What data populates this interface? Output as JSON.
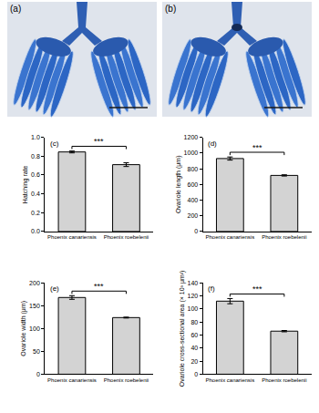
{
  "images": [
    {
      "label": "(a)"
    },
    {
      "label": "(b)"
    }
  ],
  "chart_data": [
    {
      "type": "bar",
      "label": "(c)",
      "categories": [
        "Phoenix canariensis",
        "Phoenix roebelenii"
      ],
      "values": [
        0.845,
        0.71
      ],
      "errors": [
        0.01,
        0.02
      ],
      "color": "#d3d3d3",
      "ylabel": "Hatching rate",
      "ylim": [
        0,
        1
      ],
      "yticks": [
        {
          "value": 0,
          "label": "0.0"
        },
        0.2,
        0.4,
        0.6,
        0.8,
        {
          "value": 1,
          "label": "1.0"
        }
      ],
      "grid": false,
      "annotations": [
        "***"
      ]
    },
    {
      "type": "bar",
      "label": "(d)",
      "categories": [
        "Phoenix canariensis",
        "Phoenix roebelenii"
      ],
      "values": [
        930,
        715
      ],
      "errors": [
        20,
        8
      ],
      "color": "#d3d3d3",
      "ylabel": "Ovariole length (μm)",
      "ylim": [
        0,
        1200
      ],
      "yticks": [
        0,
        200,
        400,
        600,
        800,
        1000,
        1200
      ],
      "grid": false,
      "annotations": [
        "***"
      ]
    },
    {
      "type": "bar",
      "label": "(e)",
      "categories": [
        "Phoenix canariensis",
        "Phoenix roebelenii"
      ],
      "values": [
        168,
        124
      ],
      "errors": [
        4,
        1
      ],
      "color": "#d3d3d3",
      "ylabel": "Ovariole width (μm)",
      "ylim": [
        0,
        200
      ],
      "yticks": [
        0,
        50,
        100,
        150,
        200
      ],
      "grid": false,
      "annotations": [
        "***"
      ]
    },
    {
      "type": "bar",
      "label": "(f)",
      "categories": [
        "Phoenix canariensis",
        "Phoenix roebelenii"
      ],
      "values": [
        112,
        66
      ],
      "errors": [
        4,
        1
      ],
      "color": "#d3d3d3",
      "ylabel": "Ovariole cross-sectional area (× 10³ μm²)",
      "ylim": [
        0,
        140
      ],
      "yticks": [
        0,
        20,
        40,
        60,
        80,
        100,
        120,
        140
      ],
      "grid": false,
      "annotations": [
        "***"
      ]
    }
  ]
}
